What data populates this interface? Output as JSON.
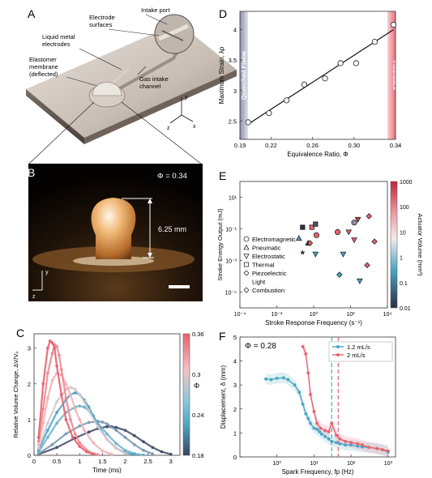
{
  "panels": {
    "A": {
      "letter": "A",
      "labels": {
        "intake_port": "Intake port",
        "electrode_surfaces": "Electrode surfaces",
        "liquid_metal": "Liquid metal electrodes",
        "elastomer": "Elastomer membrane (deflected)",
        "gas_intake": "Gas intake channel"
      },
      "axes": {
        "y": "y",
        "z": "z",
        "x": "x"
      }
    },
    "B": {
      "letter": "B",
      "phi_label": "Φ = 0.34",
      "height_label": "6.25 mm",
      "axes": {
        "y": "y",
        "z": "z"
      }
    },
    "C": {
      "letter": "C"
    },
    "D": {
      "letter": "D"
    },
    "E": {
      "letter": "E"
    },
    "F": {
      "letter": "F",
      "phi_label": "Φ = 0.28"
    }
  },
  "colors": {
    "teal": "#4aa6c4",
    "pink": "#e8616f",
    "navy": "#46506a",
    "light_pink": "#f2b3b6"
  },
  "chart_data": [
    {
      "id": "C",
      "type": "line",
      "xlabel": "Time (ms)",
      "ylabel": "Relative Volume Change, ΔV/V₀",
      "xlim": [
        0,
        3.2
      ],
      "ylim": [
        0,
        3.4
      ],
      "xticks": [
        "0",
        "0.5",
        "1",
        "1.5",
        "2",
        "2.5",
        "3"
      ],
      "yticks": [
        "0",
        "1",
        "2",
        "3"
      ],
      "colorbar": {
        "label": "Φ",
        "ticks": [
          "0.36",
          "0.3",
          "0.24",
          "0.18"
        ],
        "range": [
          0.18,
          0.36
        ]
      },
      "series": [
        {
          "phi": 0.36,
          "color": "#e8616f",
          "x": [
            0.1,
            0.2,
            0.3,
            0.35,
            0.4,
            0.45,
            0.5,
            0.6,
            0.7,
            0.85,
            1.0,
            1.15,
            1.3
          ],
          "y": [
            0.5,
            2.0,
            3.0,
            3.2,
            3.15,
            3.0,
            2.5,
            1.7,
            1.0,
            0.5,
            0.25,
            0.1,
            0.03
          ]
        },
        {
          "phi": 0.34,
          "color": "#ee8890",
          "x": [
            0.1,
            0.2,
            0.3,
            0.4,
            0.45,
            0.5,
            0.55,
            0.6,
            0.7,
            0.8,
            0.9,
            1.0,
            1.2,
            1.4
          ],
          "y": [
            0.4,
            1.3,
            2.3,
            2.85,
            3.1,
            3.05,
            2.8,
            2.4,
            1.6,
            1.0,
            0.6,
            0.35,
            0.1,
            0.02
          ]
        },
        {
          "phi": 0.32,
          "color": "#f2b0b3",
          "x": [
            0.1,
            0.2,
            0.3,
            0.4,
            0.5,
            0.6,
            0.7,
            0.8,
            0.9,
            1.0,
            1.1,
            1.3,
            1.5,
            1.7
          ],
          "y": [
            0.3,
            0.9,
            1.6,
            2.1,
            2.3,
            2.25,
            2.0,
            1.7,
            1.3,
            1.0,
            0.7,
            0.35,
            0.12,
            0.03
          ]
        },
        {
          "phi": 0.3,
          "color": "#d8c6cc",
          "x": [
            0.1,
            0.3,
            0.5,
            0.7,
            0.8,
            0.9,
            1.0,
            1.1,
            1.2,
            1.4,
            1.6,
            1.8,
            2.0
          ],
          "y": [
            0.2,
            0.9,
            1.5,
            1.85,
            1.9,
            1.85,
            1.7,
            1.5,
            1.25,
            0.8,
            0.45,
            0.2,
            0.05
          ]
        },
        {
          "phi": 0.28,
          "color": "#4aa6c4",
          "x": [
            0.1,
            0.3,
            0.5,
            0.7,
            0.8,
            0.9,
            1.0,
            1.1,
            1.2,
            1.3,
            1.4,
            1.6,
            1.8,
            2.0,
            2.2
          ],
          "y": [
            0.15,
            0.7,
            1.2,
            1.55,
            1.7,
            1.75,
            1.7,
            1.55,
            1.35,
            1.1,
            0.85,
            0.45,
            0.2,
            0.07,
            0.02
          ]
        },
        {
          "phi": 0.26,
          "color": "#6fb4c9",
          "x": [
            0.1,
            0.3,
            0.5,
            0.7,
            0.9,
            1.0,
            1.1,
            1.2,
            1.3,
            1.4,
            1.6,
            1.8,
            2.0,
            2.2,
            2.4
          ],
          "y": [
            0.1,
            0.5,
            0.9,
            1.2,
            1.35,
            1.38,
            1.35,
            1.25,
            1.1,
            0.9,
            0.6,
            0.33,
            0.14,
            0.05,
            0.01
          ]
        },
        {
          "phi": 0.24,
          "color": "#7a9cb3",
          "x": [
            0.1,
            0.4,
            0.7,
            1.0,
            1.2,
            1.4,
            1.5,
            1.6,
            1.8,
            2.0,
            2.2,
            2.4,
            2.6
          ],
          "y": [
            0.05,
            0.3,
            0.6,
            0.82,
            0.92,
            0.95,
            0.93,
            0.88,
            0.7,
            0.5,
            0.3,
            0.14,
            0.04
          ]
        },
        {
          "phi": 0.2,
          "color": "#46506a",
          "x": [
            0.1,
            0.5,
            0.9,
            1.2,
            1.4,
            1.6,
            1.7,
            1.8,
            2.0,
            2.2,
            2.4,
            2.6,
            2.8,
            3.0
          ],
          "y": [
            0.03,
            0.22,
            0.48,
            0.65,
            0.75,
            0.8,
            0.8,
            0.78,
            0.7,
            0.55,
            0.38,
            0.22,
            0.1,
            0.03
          ]
        }
      ]
    },
    {
      "id": "D",
      "type": "scatter",
      "xlabel": "Equivalence Ratio, Φ",
      "ylabel": "Maximum Strain, λp",
      "xlim": [
        0.19,
        0.34
      ],
      "ylim": [
        2.2,
        4.3
      ],
      "xticks": [
        "0.19",
        "0.22",
        "0.26",
        "0.30",
        "0.34"
      ],
      "yticks": [
        "2.5",
        "3",
        "3.5",
        "4"
      ],
      "bands": {
        "left": "Quenched Flame",
        "right": "Flashback"
      },
      "points": [
        [
          0.198,
          2.48
        ],
        [
          0.218,
          2.63
        ],
        [
          0.235,
          2.84
        ],
        [
          0.252,
          3.1
        ],
        [
          0.272,
          3.2
        ],
        [
          0.287,
          3.45
        ],
        [
          0.302,
          3.45
        ],
        [
          0.32,
          3.8
        ],
        [
          0.338,
          4.08
        ]
      ],
      "fit": [
        [
          0.198,
          2.45
        ],
        [
          0.338,
          4.0
        ]
      ]
    },
    {
      "id": "E",
      "type": "scatter",
      "xlabel": "Stroke Response Frequency (s⁻¹)",
      "ylabel": "Stroke Energy Output (mJ)",
      "xticks": [
        "10⁻⁴",
        "10⁻²",
        "10⁰",
        "10²",
        "10⁴"
      ],
      "yticks": [
        "10⁻⁵",
        "10⁻³",
        "10⁻¹",
        "10¹"
      ],
      "xlog": [
        -4,
        4
      ],
      "ylog": [
        -6,
        2
      ],
      "colorbar": {
        "label": "Actuator Volume (mm³)",
        "ticks": [
          "1000",
          "100",
          "10",
          "1",
          "0.1",
          "0.01"
        ]
      },
      "legend": [
        "Electromagnetic",
        "Pneumatic",
        "Electrostatic",
        "Thermal",
        "Piezoelectric",
        "Light",
        "Combustion"
      ],
      "points": [
        {
          "m": "circle",
          "x": 1.3,
          "y": -1.2,
          "c": "#e8616f"
        },
        {
          "m": "circle",
          "x": 2.2,
          "y": -0.6,
          "c": "#9a8aa0"
        },
        {
          "m": "circle",
          "x": 0.15,
          "y": -1.4,
          "c": "#e8616f"
        },
        {
          "m": "triangle",
          "x": -0.8,
          "y": -1.6,
          "c": "#4aa6c4"
        },
        {
          "m": "triangle",
          "x": -0.3,
          "y": -1.9,
          "c": "#2a2f3f"
        },
        {
          "m": "tridown",
          "x": 0.1,
          "y": -2.6,
          "c": "#4aa6c4"
        },
        {
          "m": "tridown",
          "x": 1.6,
          "y": -2.6,
          "c": "#4aa6c4"
        },
        {
          "m": "tridown",
          "x": 2.5,
          "y": -4.3,
          "c": "#4aa6c4"
        },
        {
          "m": "tridown",
          "x": 1.9,
          "y": -1.2,
          "c": "#e8616f"
        },
        {
          "m": "tridown",
          "x": 2.2,
          "y": -1.7,
          "c": "#e8616f"
        },
        {
          "m": "tridown",
          "x": 2.4,
          "y": -0.4,
          "c": "#c03a4a"
        },
        {
          "m": "square",
          "x": -0.6,
          "y": -0.9,
          "c": "#2a2f3f"
        },
        {
          "m": "square",
          "x": -0.1,
          "y": -0.9,
          "c": "#e8616f"
        },
        {
          "m": "square",
          "x": 0.1,
          "y": -0.7,
          "c": "#46506a"
        },
        {
          "m": "diamond",
          "x": -0.2,
          "y": -1.9,
          "c": "#e8616f"
        },
        {
          "m": "diamond",
          "x": 1.4,
          "y": -3.9,
          "c": "#4aa6c4"
        },
        {
          "m": "diamond",
          "x": 2.9,
          "y": -3.3,
          "c": "#e8616f"
        },
        {
          "m": "diamond",
          "x": 3.3,
          "y": -1.8,
          "c": "#e8616f"
        },
        {
          "m": "diamond",
          "x": 3.0,
          "y": -0.2,
          "c": "#e8616f"
        },
        {
          "m": "star",
          "x": -0.6,
          "y": -2.5,
          "c": "#2a2f3f"
        }
      ]
    },
    {
      "id": "F",
      "type": "line",
      "xlabel": "Spark Frequency, fp (Hz)",
      "ylabel": "Displacement, δ (mm)",
      "xticks": [
        "10⁰",
        "10¹",
        "10²",
        "10³"
      ],
      "yticks": [
        "0",
        "1",
        "2",
        "3",
        "4",
        "5"
      ],
      "xlog": [
        -1,
        3.2
      ],
      "ylim": [
        0,
        5
      ],
      "vlines": [
        {
          "x": 30,
          "c": "#4aa6c4"
        },
        {
          "x": 45,
          "c": "#e8616f"
        }
      ],
      "series": [
        {
          "name": "1.2 mL/s",
          "color": "#4aa6c4",
          "x": [
            0.5,
            0.7,
            1,
            1.5,
            2,
            3,
            4,
            5,
            6,
            7,
            8,
            10,
            12,
            14,
            16,
            20,
            25,
            30,
            40,
            50,
            70,
            100,
            150,
            200,
            300,
            500,
            700,
            1000
          ],
          "y": [
            3.25,
            3.22,
            3.28,
            3.3,
            3.22,
            3.0,
            2.7,
            2.2,
            1.8,
            1.6,
            1.4,
            1.2,
            1.15,
            1.05,
            0.95,
            0.85,
            0.75,
            0.65,
            0.6,
            0.55,
            0.5,
            0.5,
            0.45,
            0.42,
            0.4,
            0.35,
            0.3,
            0.2
          ]
        },
        {
          "name": "2 mL/s",
          "color": "#e8616f",
          "x": [
            5,
            6,
            7,
            8,
            10,
            12,
            15,
            20,
            25,
            30,
            40,
            50,
            70,
            100,
            150,
            200,
            300,
            500,
            700,
            1000
          ],
          "y": [
            4.6,
            4.3,
            3.5,
            2.6,
            1.9,
            1.4,
            1.2,
            1.1,
            1.05,
            1.4,
            0.9,
            0.75,
            0.65,
            0.6,
            0.55,
            0.5,
            0.4,
            0.35,
            0.3,
            0.25
          ]
        }
      ]
    }
  ]
}
